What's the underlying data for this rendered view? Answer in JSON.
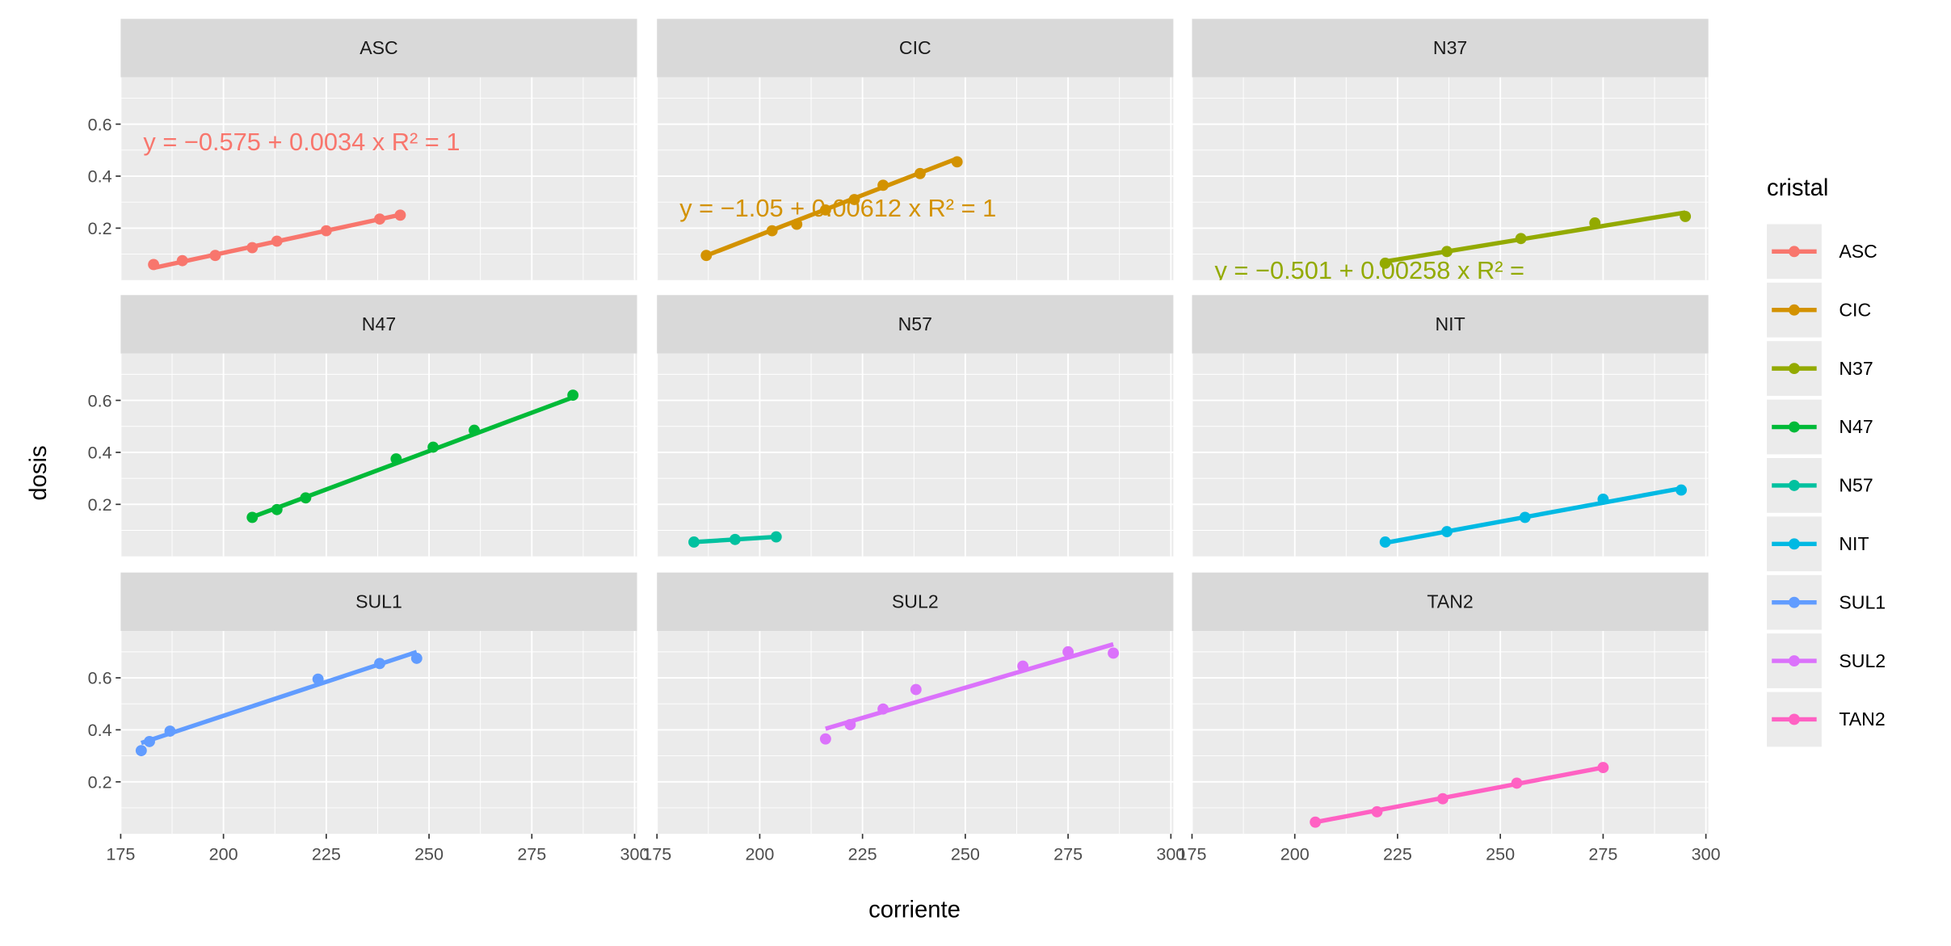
{
  "chart_data": {
    "type": "scatter",
    "xlabel": "corriente",
    "ylabel": "dosis",
    "xlim": [
      175,
      300.6
    ],
    "ylim": [
      0,
      0.78
    ],
    "x_ticks": [
      175,
      200,
      225,
      250,
      275,
      300
    ],
    "x_tick_labels": [
      "175",
      "200",
      "225",
      "250",
      "275",
      "300"
    ],
    "y_ticks": [
      0.2,
      0.4,
      0.6
    ],
    "y_tick_labels": [
      "0.2",
      "0.4",
      "0.6"
    ],
    "grid": true,
    "legend": {
      "title": "cristal",
      "position": "right"
    },
    "panels": [
      {
        "name": "ASC",
        "color": "#F8766D",
        "x": [
          183,
          190,
          198,
          207,
          213,
          225,
          238,
          243
        ],
        "y": [
          0.06,
          0.075,
          0.095,
          0.125,
          0.15,
          0.19,
          0.235,
          0.25
        ],
        "fit": [
          -0.575,
          0.0034
        ],
        "equation": "y = −0.575 + 0.0034 x   R² = 1",
        "eq_pos": [
          180.5,
          0.5
        ]
      },
      {
        "name": "CIC",
        "color": "#D39200",
        "x": [
          187,
          203,
          209,
          216,
          223,
          230,
          239,
          248
        ],
        "y": [
          0.095,
          0.19,
          0.215,
          0.27,
          0.31,
          0.365,
          0.41,
          0.455
        ],
        "fit": [
          -1.05,
          0.00612
        ],
        "equation": "y = −1.05 + 0.00612 x   R² = 1",
        "eq_pos": [
          180.5,
          0.245
        ]
      },
      {
        "name": "N37",
        "color": "#93AA00",
        "x": [
          222,
          237,
          255,
          273,
          295
        ],
        "y": [
          0.065,
          0.11,
          0.16,
          0.22,
          0.245
        ],
        "fit": [
          -0.501,
          0.00258
        ],
        "equation": "y = −0.501 + 0.00258 x   R² = ",
        "eq_pos": [
          180.5,
          0.005
        ]
      },
      {
        "name": "N47",
        "color": "#00BA38",
        "x": [
          207,
          213,
          220,
          242,
          251,
          261,
          285
        ],
        "y": [
          0.15,
          0.18,
          0.225,
          0.375,
          0.42,
          0.485,
          0.62
        ],
        "fit": [
          -1.07,
          0.0059
        ]
      },
      {
        "name": "N57",
        "color": "#00C19F",
        "x": [
          184,
          194,
          204
        ],
        "y": [
          0.055,
          0.065,
          0.075
        ],
        "fit": [
          -0.129,
          0.001
        ]
      },
      {
        "name": "NIT",
        "color": "#00B9E3",
        "x": [
          222,
          237,
          256,
          275,
          294
        ],
        "y": [
          0.055,
          0.095,
          0.15,
          0.22,
          0.255
        ],
        "fit": [
          -0.594,
          0.00291
        ]
      },
      {
        "name": "SUL1",
        "color": "#619CFF",
        "x": [
          180,
          182,
          187,
          223,
          238,
          247
        ],
        "y": [
          0.32,
          0.355,
          0.395,
          0.595,
          0.655,
          0.675
        ],
        "fit": [
          -0.59,
          0.00522
        ]
      },
      {
        "name": "SUL2",
        "color": "#DB72FB",
        "x": [
          216,
          222,
          230,
          238,
          264,
          275,
          286
        ],
        "y": [
          0.365,
          0.42,
          0.48,
          0.555,
          0.645,
          0.7,
          0.695
        ],
        "fit": [
          -0.598,
          0.00464
        ]
      },
      {
        "name": "TAN2",
        "color": "#FF61C3",
        "x": [
          205,
          220,
          236,
          254,
          275
        ],
        "y": [
          0.045,
          0.085,
          0.135,
          0.195,
          0.255
        ],
        "fit": [
          -0.57,
          0.003
        ]
      }
    ]
  }
}
